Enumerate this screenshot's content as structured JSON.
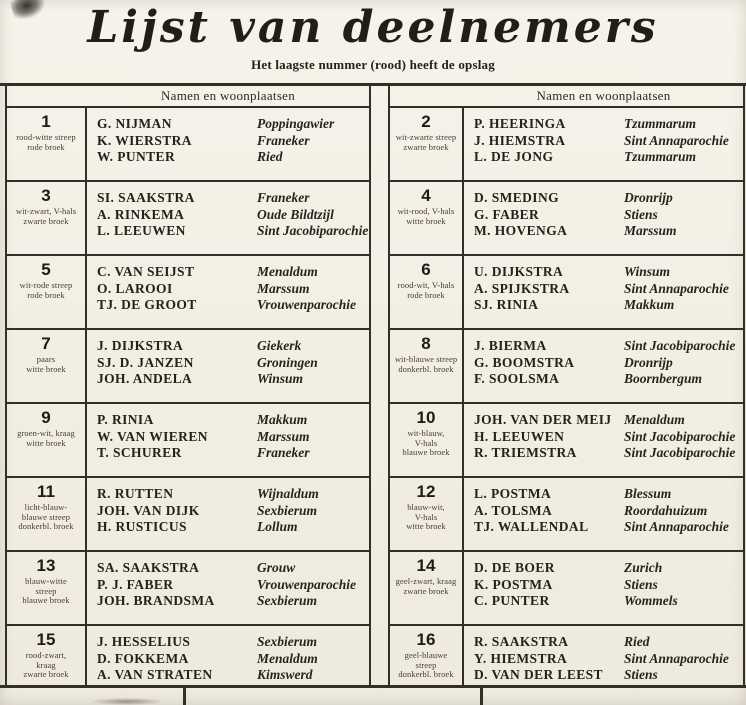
{
  "page": {
    "title": "Lijst van deelnemers",
    "subtitle": "Het laagste nummer (rood) heeft de opslag",
    "column_header": "Namen en woonplaatsen",
    "paper_color": "#f2efe5",
    "ink_color": "#2b2620",
    "border_color": "#332f28",
    "lowest_number_note_color": "rood"
  },
  "participants_left": [
    {
      "number": "1",
      "outfit_lines": [
        "rood-witte streep",
        "rode broek"
      ],
      "entries": [
        {
          "name": "G. NIJMAN",
          "place": "Poppingawier"
        },
        {
          "name": "K. WIERSTRA",
          "place": "Franeker"
        },
        {
          "name": "W. PUNTER",
          "place": "Ried"
        }
      ]
    },
    {
      "number": "3",
      "outfit_lines": [
        "wit-zwart, V-hals",
        "zwarte broek"
      ],
      "entries": [
        {
          "name": "SI. SAAKSTRA",
          "place": "Franeker"
        },
        {
          "name": "A. RINKEMA",
          "place": "Oude Bildtzijl"
        },
        {
          "name": "L. LEEUWEN",
          "place": "Sint Jacobiparochie"
        }
      ]
    },
    {
      "number": "5",
      "outfit_lines": [
        "wit-rode streep",
        "rode broek"
      ],
      "entries": [
        {
          "name": "C. VAN SEIJST",
          "place": "Menaldum"
        },
        {
          "name": "O. LAROOI",
          "place": "Marssum"
        },
        {
          "name": "TJ. DE GROOT",
          "place": "Vrouwenparochie"
        }
      ]
    },
    {
      "number": "7",
      "outfit_lines": [
        "paars",
        "witte broek"
      ],
      "entries": [
        {
          "name": "J. DIJKSTRA",
          "place": "Giekerk"
        },
        {
          "name": "SJ. D. JANZEN",
          "place": "Groningen"
        },
        {
          "name": "JOH. ANDELA",
          "place": "Winsum"
        }
      ]
    },
    {
      "number": "9",
      "outfit_lines": [
        "groen-wit, kraag",
        "witte broek"
      ],
      "entries": [
        {
          "name": "P. RINIA",
          "place": "Makkum"
        },
        {
          "name": "W. VAN WIEREN",
          "place": "Marssum"
        },
        {
          "name": "T. SCHURER",
          "place": "Franeker"
        }
      ]
    },
    {
      "number": "11",
      "outfit_lines": [
        "licht-blauw-",
        "blauwe streep",
        "donkerbl. broek"
      ],
      "entries": [
        {
          "name": "R. RUTTEN",
          "place": "Wijnaldum"
        },
        {
          "name": "JOH. VAN DIJK",
          "place": "Sexbierum"
        },
        {
          "name": "H. RUSTICUS",
          "place": "Lollum"
        }
      ]
    },
    {
      "number": "13",
      "outfit_lines": [
        "blauw-witte",
        "streep",
        "blauwe broek"
      ],
      "entries": [
        {
          "name": "SA. SAAKSTRA",
          "place": "Grouw"
        },
        {
          "name": "P. J. FABER",
          "place": "Vrouwenparochie"
        },
        {
          "name": "JOH. BRANDSMA",
          "place": "Sexbierum"
        }
      ]
    },
    {
      "number": "15",
      "outfit_lines": [
        "rood-zwart,",
        "kraag",
        "zwarte broek"
      ],
      "entries": [
        {
          "name": "J. HESSELIUS",
          "place": "Sexbierum"
        },
        {
          "name": "D. FOKKEMA",
          "place": "Menaldum"
        },
        {
          "name": "A. VAN STRATEN",
          "place": "Kimswerd"
        }
      ]
    }
  ],
  "participants_right": [
    {
      "number": "2",
      "outfit_lines": [
        "wit-zwarte streep",
        "zwarte broek"
      ],
      "entries": [
        {
          "name": "P. HEERINGA",
          "place": "Tzummarum"
        },
        {
          "name": "J. HIEMSTRA",
          "place": "Sint Annaparochie"
        },
        {
          "name": "L. DE JONG",
          "place": "Tzummarum"
        }
      ]
    },
    {
      "number": "4",
      "outfit_lines": [
        "wit-rood, V-hals",
        "witte broek"
      ],
      "entries": [
        {
          "name": "D. SMEDING",
          "place": "Dronrijp"
        },
        {
          "name": "G. FABER",
          "place": "Stiens"
        },
        {
          "name": "M. HOVENGA",
          "place": "Marssum"
        }
      ]
    },
    {
      "number": "6",
      "outfit_lines": [
        "rood-wit, V-hals",
        "rode broek"
      ],
      "entries": [
        {
          "name": "U. DIJKSTRA",
          "place": "Winsum"
        },
        {
          "name": "A. SPIJKSTRA",
          "place": "Sint Annaparochie"
        },
        {
          "name": "SJ. RINIA",
          "place": "Makkum"
        }
      ]
    },
    {
      "number": "8",
      "outfit_lines": [
        "wit-blauwe streep",
        "donkerbl. broek"
      ],
      "entries": [
        {
          "name": "J. BIERMA",
          "place": "Sint Jacobiparochie"
        },
        {
          "name": "G. BOOMSTRA",
          "place": "Dronrijp"
        },
        {
          "name": "F. SOOLSMA",
          "place": "Boornbergum"
        }
      ]
    },
    {
      "number": "10",
      "outfit_lines": [
        "wit-blauw,",
        "V-hals",
        "blauwe broek"
      ],
      "entries": [
        {
          "name": "JOH. VAN DER MEIJ",
          "place": "Menaldum"
        },
        {
          "name": "H. LEEUWEN",
          "place": "Sint Jacobiparochie"
        },
        {
          "name": "R. TRIEMSTRA",
          "place": "Sint Jacobiparochie"
        }
      ]
    },
    {
      "number": "12",
      "outfit_lines": [
        "blauw-wit,",
        "V-hals",
        "witte broek"
      ],
      "entries": [
        {
          "name": "L. POSTMA",
          "place": "Blessum"
        },
        {
          "name": "A. TOLSMA",
          "place": "Roordahuizum"
        },
        {
          "name": "TJ. WALLENDAL",
          "place": "Sint Annaparochie"
        }
      ]
    },
    {
      "number": "14",
      "outfit_lines": [
        "geel-zwart, kraag",
        "zwarte broek"
      ],
      "entries": [
        {
          "name": "D. DE BOER",
          "place": "Zurich"
        },
        {
          "name": "K. POSTMA",
          "place": "Stiens"
        },
        {
          "name": "C. PUNTER",
          "place": "Wommels"
        }
      ]
    },
    {
      "number": "16",
      "outfit_lines": [
        "geel-blauwe",
        "streep",
        "donkerbl. broek"
      ],
      "entries": [
        {
          "name": "R. SAAKSTRA",
          "place": "Ried"
        },
        {
          "name": "Y. HIEMSTRA",
          "place": "Sint Annaparochie"
        },
        {
          "name": "D. VAN DER LEEST",
          "place": "Stiens"
        }
      ]
    }
  ]
}
